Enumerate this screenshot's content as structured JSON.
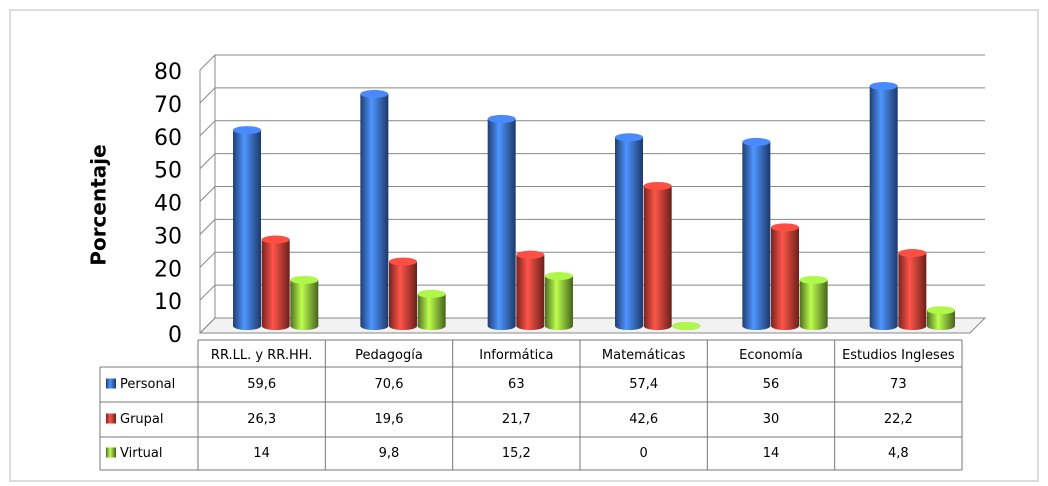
{
  "chart_data": {
    "type": "bar3d",
    "y_label": "Porcentaje",
    "categories": [
      "RR.LL. y RR.HH.",
      "Pedagogía",
      "Informática",
      "Matemáticas",
      "Economía",
      "Estudios Ingleses"
    ],
    "series": [
      {
        "name": "Personal",
        "color": "#3a6fd0",
        "values": [
          59.6,
          70.6,
          63,
          57.4,
          56,
          73
        ],
        "value_labels": [
          "59,6",
          "70,6",
          "63",
          "57,4",
          "56",
          "73"
        ]
      },
      {
        "name": "Grupal",
        "color": "#d43f36",
        "values": [
          26.3,
          19.6,
          21.7,
          42.6,
          30,
          22.2
        ],
        "value_labels": [
          "26,3",
          "19,6",
          "21,7",
          "42,6",
          "30",
          "22,2"
        ]
      },
      {
        "name": "Virtual",
        "color": "#8cc63a",
        "values": [
          14,
          9.8,
          15.2,
          0,
          14,
          4.8
        ],
        "value_labels": [
          "14",
          "9,8",
          "15,2",
          "0",
          "14",
          "4,8"
        ]
      }
    ],
    "ylim": [
      0,
      80
    ],
    "yticks": [
      0,
      10,
      20,
      30,
      40,
      50,
      60,
      70,
      80
    ],
    "grid": true,
    "legend": "table"
  }
}
